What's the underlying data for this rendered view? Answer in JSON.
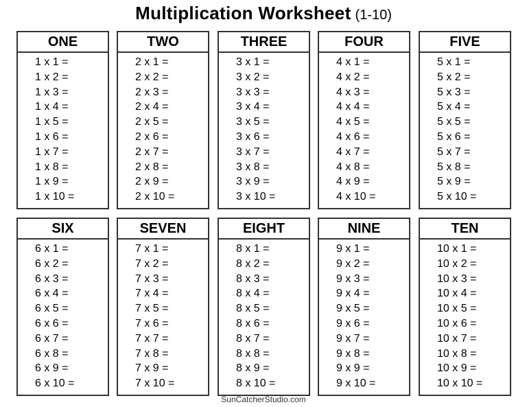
{
  "title": {
    "main": "Multiplication Worksheet",
    "sub": "(1-10)"
  },
  "tables": [
    {
      "header": "ONE",
      "rows": [
        "1 x 1 =",
        "1 x 2 =",
        "1 x 3 =",
        "1 x 4 =",
        "1 x 5 =",
        "1 x 6 =",
        "1 x 7 =",
        "1 x 8 =",
        "1 x 9 =",
        "1 x 10 ="
      ]
    },
    {
      "header": "TWO",
      "rows": [
        "2 x 1 =",
        "2 x 2 =",
        "2 x 3 =",
        "2 x 4 =",
        "2 x 5 =",
        "2 x 6 =",
        "2 x 7 =",
        "2 x 8 =",
        "2 x 9 =",
        "2 x 10 ="
      ]
    },
    {
      "header": "THREE",
      "rows": [
        "3 x 1 =",
        "3 x 2 =",
        "3 x 3 =",
        "3 x 4 =",
        "3 x 5 =",
        "3 x 6 =",
        "3 x 7 =",
        "3 x 8 =",
        "3 x 9 =",
        "3 x 10 ="
      ]
    },
    {
      "header": "FOUR",
      "rows": [
        "4 x 1 =",
        "4 x 2 =",
        "4 x 3 =",
        "4 x 4 =",
        "4 x 5 =",
        "4 x 6 =",
        "4 x 7 =",
        "4 x 8 =",
        "4 x 9 =",
        "4 x 10 ="
      ]
    },
    {
      "header": "FIVE",
      "rows": [
        "5 x 1 =",
        "5 x 2 =",
        "5 x 3 =",
        "5 x 4 =",
        "5 x 5 =",
        "5 x 6 =",
        "5 x 7 =",
        "5 x 8 =",
        "5 x 9 =",
        "5 x 10 ="
      ]
    },
    {
      "header": "SIX",
      "rows": [
        "6 x 1 =",
        "6 x 2 =",
        "6 x 3 =",
        "6 x 4 =",
        "6 x 5 =",
        "6 x 6 =",
        "6 x 7 =",
        "6 x 8 =",
        "6 x 9 =",
        "6 x 10 ="
      ]
    },
    {
      "header": "SEVEN",
      "rows": [
        "7 x 1 =",
        "7 x 2 =",
        "7 x 3 =",
        "7 x 4 =",
        "7 x 5 =",
        "7 x 6 =",
        "7 x 7 =",
        "7 x 8 =",
        "7 x 9 =",
        "7 x 10 ="
      ]
    },
    {
      "header": "EIGHT",
      "rows": [
        "8 x 1 =",
        "8 x 2 =",
        "8 x 3 =",
        "8 x 4 =",
        "8 x 5 =",
        "8 x 6 =",
        "8 x 7 =",
        "8 x 8 =",
        "8 x 9 =",
        "8 x 10 ="
      ]
    },
    {
      "header": "NINE",
      "rows": [
        "9 x 1 =",
        "9 x 2 =",
        "9 x 3 =",
        "9 x 4 =",
        "9 x 5 =",
        "9 x 6 =",
        "9 x 7 =",
        "9 x 8 =",
        "9 x 9 =",
        "9 x 10 ="
      ]
    },
    {
      "header": "TEN",
      "rows": [
        "10 x 1 =",
        "10 x 2 =",
        "10 x 3 =",
        "10 x 4 =",
        "10 x 5 =",
        "10 x 6 =",
        "10 x 7 =",
        "10 x 8 =",
        "10 x 9 =",
        "10 x 10 ="
      ]
    }
  ],
  "footer": "SunCatcherStudio.com"
}
